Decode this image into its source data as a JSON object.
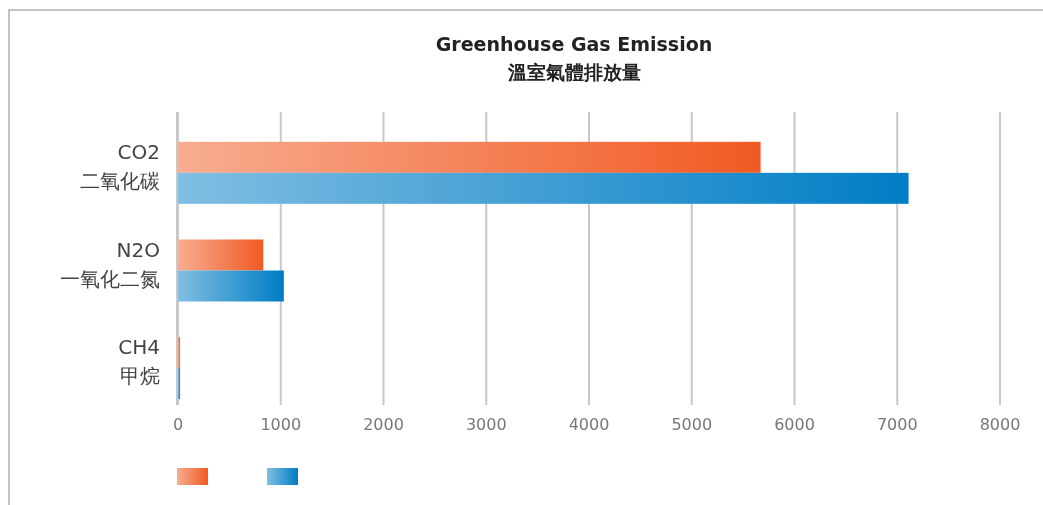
{
  "chart_data": {
    "type": "bar",
    "orientation": "horizontal",
    "title": "Greenhouse Gas Emission\n溫室氣體排放量",
    "categories": [
      "CO2\n二氧化碳",
      "N2O\n一氧化二氮",
      "CH4\n甲烷"
    ],
    "series": [
      {
        "color": "#f15a22",
        "values": [
          5670,
          830,
          20
        ]
      },
      {
        "color": "#007dc5",
        "values": [
          7110,
          1030,
          20
        ]
      }
    ],
    "xlim": [
      0,
      8000
    ],
    "xticks": [
      0,
      1000,
      2000,
      3000,
      4000,
      5000,
      6000,
      7000,
      8000
    ],
    "grid": "x"
  }
}
